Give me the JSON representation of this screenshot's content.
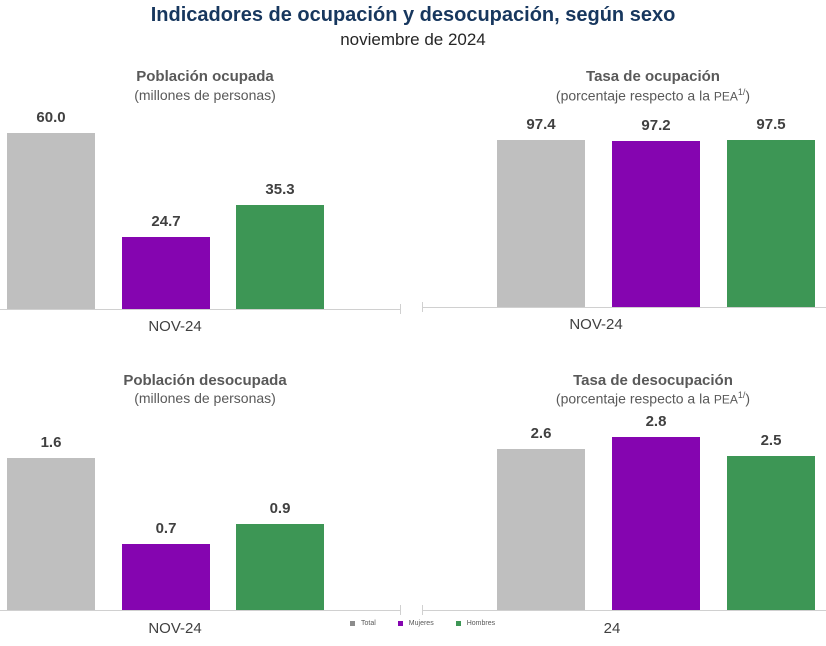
{
  "header": {
    "title": "Indicadores de ocupación y desocupación, según sexo",
    "subtitle": "noviembre de 2024"
  },
  "legend": [
    {
      "label": "Total",
      "color": "#bfbfbf"
    },
    {
      "label": "Mujeres",
      "color": "#8505b0"
    },
    {
      "label": "Hombres",
      "color": "#3d9655"
    }
  ],
  "chart_data": [
    {
      "type": "bar",
      "title": "Población ocupada",
      "subtitle": "(millones de personas)",
      "categories": [
        "NOV-24"
      ],
      "category_label": "NOV-24",
      "series": [
        {
          "name": "Total",
          "values": [
            60.0
          ],
          "label": "60.0"
        },
        {
          "name": "Mujeres",
          "values": [
            24.7
          ],
          "label": "24.7"
        },
        {
          "name": "Hombres",
          "values": [
            35.3
          ],
          "label": "35.3"
        }
      ],
      "ylim": [
        0,
        60
      ]
    },
    {
      "type": "bar",
      "title": "Tasa de ocupación",
      "subtitle_main": "(porcentaje respecto a la ",
      "subtitle_pea": "PEA",
      "subtitle_sup": "1/",
      "subtitle_end": ")",
      "categories": [
        "NOV-24"
      ],
      "category_label": "NOV-24",
      "series": [
        {
          "name": "Total",
          "values": [
            97.4
          ],
          "label": "97.4"
        },
        {
          "name": "Mujeres",
          "values": [
            97.2
          ],
          "label": "97.2"
        },
        {
          "name": "Hombres",
          "values": [
            97.5
          ],
          "label": "97.5"
        }
      ],
      "ylim": [
        0,
        97.5
      ]
    },
    {
      "type": "bar",
      "title": "Población desocupada",
      "subtitle": "(millones de personas)",
      "categories": [
        "NOV-24"
      ],
      "category_label": "NOV-24",
      "series": [
        {
          "name": "Total",
          "values": [
            1.6
          ],
          "label": "1.6"
        },
        {
          "name": "Mujeres",
          "values": [
            0.7
          ],
          "label": "0.7"
        },
        {
          "name": "Hombres",
          "values": [
            0.9
          ],
          "label": "0.9"
        }
      ],
      "ylim": [
        0,
        1.6
      ]
    },
    {
      "type": "bar",
      "title": "Tasa de desocupación",
      "subtitle_main": "(porcentaje respecto a la ",
      "subtitle_pea": "PEA",
      "subtitle_sup": "1/",
      "subtitle_end": ")",
      "categories": [
        "NOV-24"
      ],
      "category_label": "24",
      "series": [
        {
          "name": "Total",
          "values": [
            2.6
          ],
          "label": "2.6"
        },
        {
          "name": "Mujeres",
          "values": [
            2.8
          ],
          "label": "2.8"
        },
        {
          "name": "Hombres",
          "values": [
            2.5
          ],
          "label": "2.5"
        }
      ],
      "ylim": [
        0,
        2.8
      ]
    }
  ]
}
